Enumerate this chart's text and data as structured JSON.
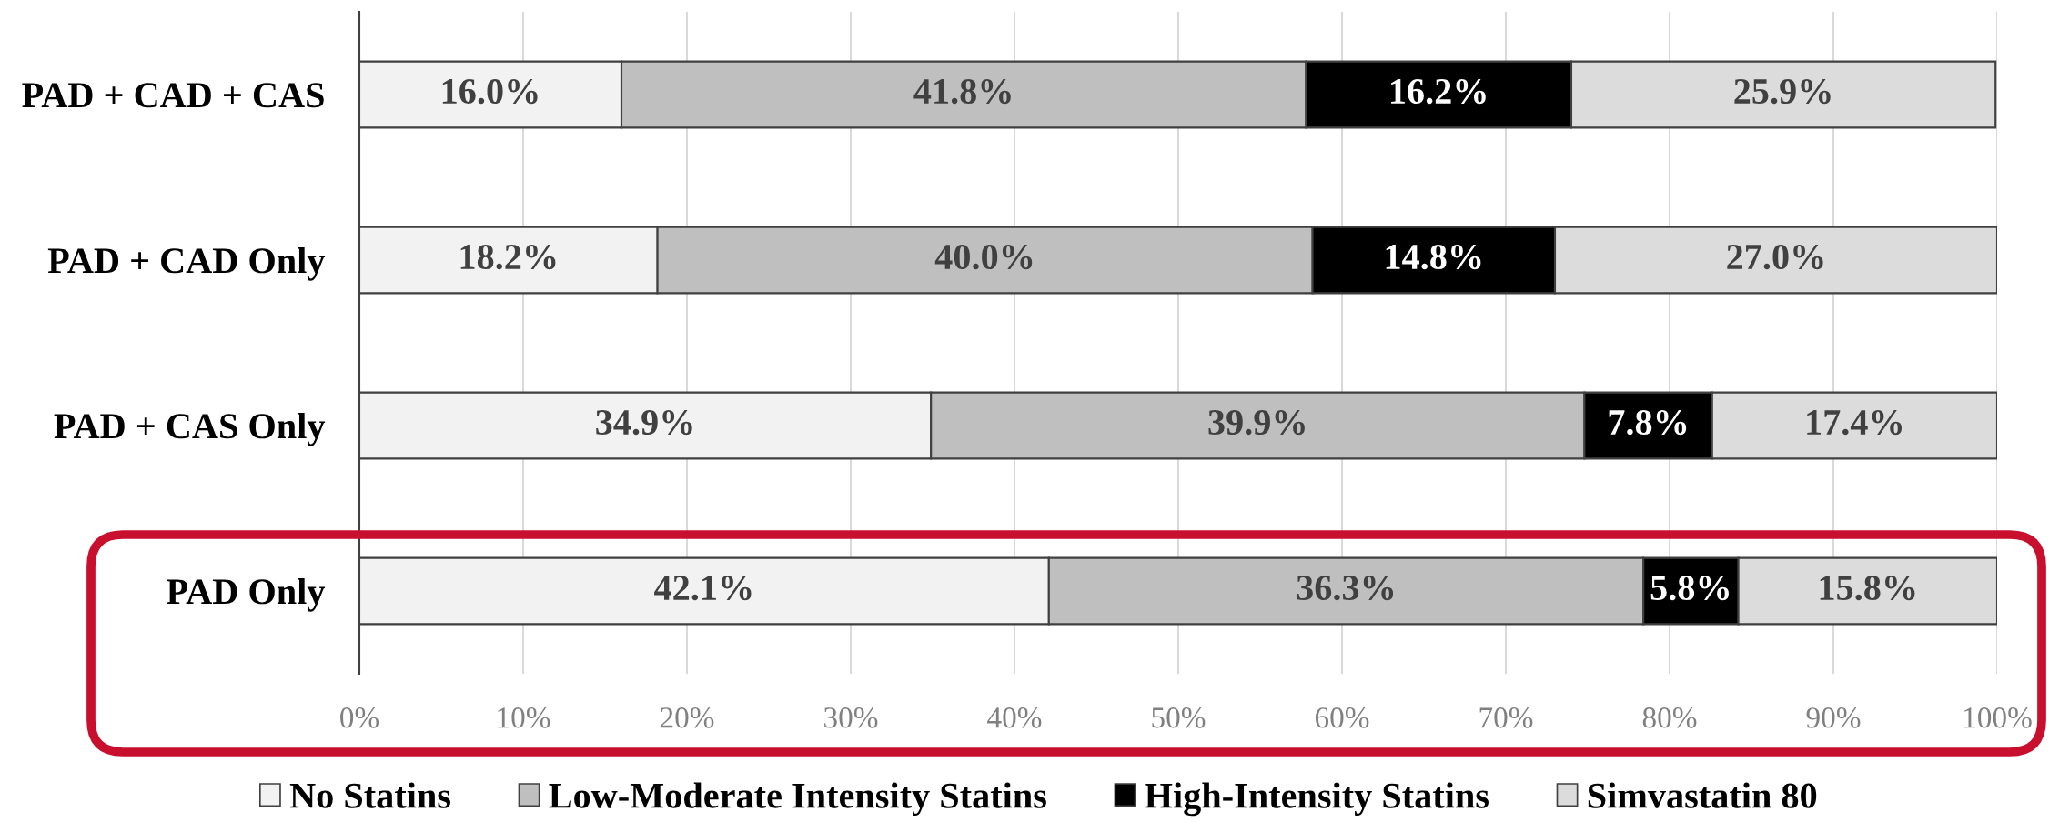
{
  "chart_data": {
    "type": "bar",
    "orientation": "horizontal",
    "stacked": true,
    "categories": [
      "PAD + CAD + CAS",
      "PAD + CAD Only",
      "PAD + CAS Only",
      "PAD Only"
    ],
    "series": [
      {
        "name": "No Statins",
        "color": "#f2f2f2",
        "values": [
          16.0,
          18.2,
          34.9,
          42.1
        ],
        "value_labels": [
          "16.0%",
          "18.2%",
          "34.9%",
          "42.1%"
        ]
      },
      {
        "name": "Low-Moderate Intensity Statins",
        "color": "#bfbfbf",
        "values": [
          41.8,
          40.0,
          39.9,
          36.3
        ],
        "value_labels": [
          "41.8%",
          "40.0%",
          "39.9%",
          "36.3%"
        ]
      },
      {
        "name": "High-Intensity Statins",
        "color": "#000000",
        "values": [
          16.2,
          14.8,
          7.8,
          5.8
        ],
        "value_labels": [
          "16.2%",
          "14.8%",
          "7.8%",
          "5.8%"
        ]
      },
      {
        "name": "Simvastatin 80",
        "color": "#dcdcdc",
        "values": [
          25.9,
          27.0,
          17.4,
          15.8
        ],
        "value_labels": [
          "25.9%",
          "27.0%",
          "17.4%",
          "15.8%"
        ]
      }
    ],
    "xlim": [
      0,
      100
    ],
    "xticks": [
      {
        "value": 0,
        "label": "0%"
      },
      {
        "value": 10,
        "label": "10%"
      },
      {
        "value": 20,
        "label": "20%"
      },
      {
        "value": 30,
        "label": "30%"
      },
      {
        "value": 40,
        "label": "40%"
      },
      {
        "value": 50,
        "label": "50%"
      },
      {
        "value": 60,
        "label": "60%"
      },
      {
        "value": 70,
        "label": "70%"
      },
      {
        "value": 80,
        "label": "80%"
      },
      {
        "value": 90,
        "label": "90%"
      },
      {
        "value": 100,
        "label": "100%"
      }
    ],
    "grid": "x",
    "legend": "bottom"
  }
}
